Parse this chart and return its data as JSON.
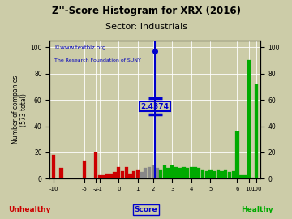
{
  "title": "Z''-Score Histogram for XRX (2016)",
  "subtitle": "Sector: Industrials",
  "watermark1": "©www.textbiz.org",
  "watermark2": "The Research Foundation of SUNY",
  "xrx_score_label": "2.4374",
  "bg_color": "#cccca8",
  "bars": [
    [
      0,
      18,
      "#cc0000"
    ],
    [
      1,
      0,
      "#cc0000"
    ],
    [
      2,
      8,
      "#cc0000"
    ],
    [
      3,
      0,
      "#cc0000"
    ],
    [
      4,
      0,
      "#cc0000"
    ],
    [
      5,
      0,
      "#cc0000"
    ],
    [
      6,
      0,
      "#cc0000"
    ],
    [
      7,
      0,
      "#cc0000"
    ],
    [
      8,
      14,
      "#cc0000"
    ],
    [
      9,
      0,
      "#cc0000"
    ],
    [
      10,
      0,
      "#cc0000"
    ],
    [
      11,
      20,
      "#cc0000"
    ],
    [
      12,
      3,
      "#cc0000"
    ],
    [
      13,
      3,
      "#cc0000"
    ],
    [
      14,
      4,
      "#cc0000"
    ],
    [
      15,
      4,
      "#cc0000"
    ],
    [
      16,
      5,
      "#cc0000"
    ],
    [
      17,
      9,
      "#cc0000"
    ],
    [
      18,
      6,
      "#cc0000"
    ],
    [
      19,
      9,
      "#cc0000"
    ],
    [
      20,
      4,
      "#cc0000"
    ],
    [
      21,
      6,
      "#cc0000"
    ],
    [
      22,
      7,
      "#cc0000"
    ],
    [
      23,
      5,
      "#888888"
    ],
    [
      24,
      8,
      "#888888"
    ],
    [
      25,
      9,
      "#888888"
    ],
    [
      26,
      10,
      "#888888"
    ],
    [
      27,
      8,
      "#888888"
    ],
    [
      28,
      7,
      "#00aa00"
    ],
    [
      29,
      10,
      "#00aa00"
    ],
    [
      30,
      8,
      "#00aa00"
    ],
    [
      31,
      10,
      "#00aa00"
    ],
    [
      32,
      9,
      "#00aa00"
    ],
    [
      33,
      8,
      "#00aa00"
    ],
    [
      34,
      9,
      "#00aa00"
    ],
    [
      35,
      8,
      "#00aa00"
    ],
    [
      36,
      9,
      "#00aa00"
    ],
    [
      37,
      9,
      "#00aa00"
    ],
    [
      38,
      8,
      "#00aa00"
    ],
    [
      39,
      7,
      "#00aa00"
    ],
    [
      40,
      6,
      "#00aa00"
    ],
    [
      41,
      7,
      "#00aa00"
    ],
    [
      42,
      6,
      "#00aa00"
    ],
    [
      43,
      7,
      "#00aa00"
    ],
    [
      44,
      6,
      "#00aa00"
    ],
    [
      45,
      7,
      "#00aa00"
    ],
    [
      46,
      5,
      "#00aa00"
    ],
    [
      47,
      6,
      "#00aa00"
    ],
    [
      48,
      36,
      "#00aa00"
    ],
    [
      49,
      3,
      "#00aa00"
    ],
    [
      50,
      3,
      "#00aa00"
    ],
    [
      51,
      90,
      "#00aa00"
    ],
    [
      52,
      1,
      "#00aa00"
    ],
    [
      53,
      72,
      "#00aa00"
    ]
  ],
  "xtick_indices": [
    0,
    8,
    11,
    12,
    17,
    22,
    26,
    31,
    36,
    41,
    48,
    51,
    53
  ],
  "xtick_labels": [
    "-10",
    "-5",
    "-2",
    "-1",
    "0",
    "1",
    "2",
    "3",
    "4",
    "5",
    "6",
    "10",
    "100"
  ],
  "score_index": 26.5,
  "ytick_positions": [
    0,
    20,
    40,
    60,
    80,
    100
  ],
  "ylim": [
    0,
    105
  ],
  "unhealthy_label": "Unhealthy",
  "score_label": "Score",
  "healthy_label": "Healthy"
}
